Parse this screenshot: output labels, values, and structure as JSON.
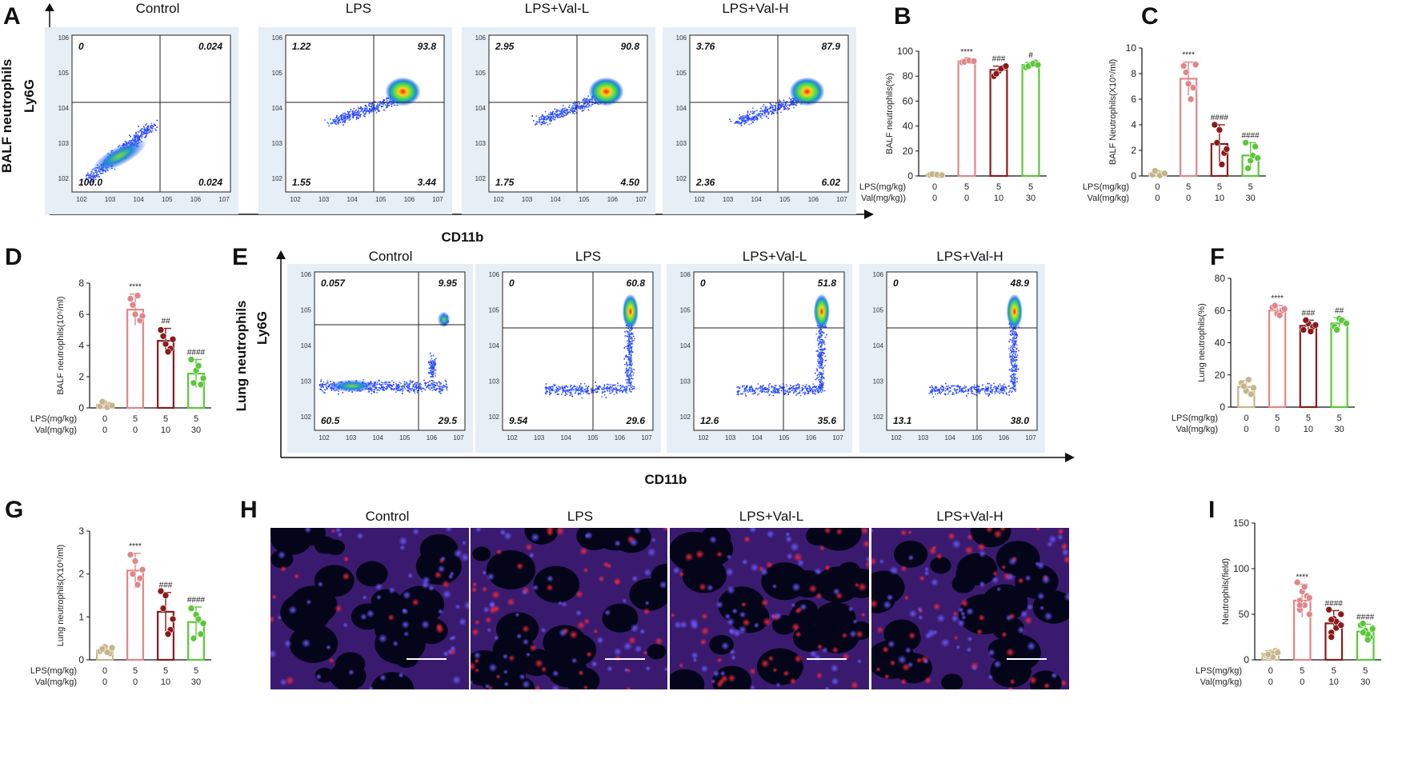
{
  "panel_letters": {
    "A": "A",
    "B": "B",
    "C": "C",
    "D": "D",
    "E": "E",
    "F": "F",
    "G": "G",
    "H": "H",
    "I": "I"
  },
  "groups": [
    "Control",
    "LPS",
    "LPS+Val-L",
    "LPS+Val-H"
  ],
  "bar_colors": {
    "edge": [
      "#c8b48a",
      "#e0868a",
      "#8b1a1a",
      "#5cc73a"
    ],
    "dot": [
      "#c8b48a",
      "#e0868a",
      "#8b1a1a",
      "#5cc73a"
    ]
  },
  "dose_table": {
    "lps_label": "LPS(mg/kg)",
    "val_label": "Val(mg/kg)",
    "val_label_b": "Val(mg/kg))",
    "lps": [
      "0",
      "5",
      "5",
      "5"
    ],
    "val": [
      "0",
      "0",
      "10",
      "30"
    ]
  },
  "flow_A": {
    "title_y_outer": "BALF neutrophils",
    "ylabel": "Ly6G",
    "xlabel": "CD11b",
    "quadrants": [
      {
        "ul": "0",
        "ur": "0.024",
        "ll": "100.0",
        "lr": "0.024"
      },
      {
        "ul": "1.22",
        "ur": "93.8",
        "ll": "1.55",
        "lr": "3.44"
      },
      {
        "ul": "2.95",
        "ur": "90.8",
        "ll": "1.75",
        "lr": "4.50"
      },
      {
        "ul": "3.76",
        "ur": "87.9",
        "ll": "2.36",
        "lr": "6.02"
      }
    ]
  },
  "flow_E": {
    "title_y_outer": "Lung neutrophils",
    "ylabel": "Ly6G",
    "xlabel": "CD11b",
    "quadrants": [
      {
        "ul": "0.057",
        "ur": "9.95",
        "ll": "60.5",
        "lr": "29.5"
      },
      {
        "ul": "0",
        "ur": "60.8",
        "ll": "9.54",
        "lr": "29.6"
      },
      {
        "ul": "0",
        "ur": "51.8",
        "ll": "12.6",
        "lr": "35.6"
      },
      {
        "ul": "0",
        "ur": "48.9",
        "ll": "13.1",
        "lr": "38.0"
      }
    ]
  },
  "chart_data": [
    {
      "id": "B",
      "type": "bar",
      "ylabel": "BALF neutrophils(%)",
      "ylim": [
        0,
        100
      ],
      "yticks": [
        "0",
        "20",
        "40",
        "60",
        "80",
        "100"
      ],
      "values": [
        1,
        92,
        85,
        89
      ],
      "errors": [
        0.5,
        1.5,
        3,
        2
      ],
      "points": [
        [
          0.8,
          1.2,
          0.5,
          1.5,
          1.0,
          0.7
        ],
        [
          91,
          93,
          92,
          91.5,
          92.5,
          92
        ],
        [
          80,
          84,
          87,
          82,
          86,
          88
        ],
        [
          87,
          89,
          91,
          88,
          90,
          89
        ]
      ],
      "sig": [
        "",
        "****",
        "###",
        "#"
      ]
    },
    {
      "id": "C",
      "type": "bar",
      "ylabel": "BALF Neutrophils(X10⁵/ml)",
      "ylim": [
        0,
        10
      ],
      "yticks": [
        "0",
        "2",
        "4",
        "6",
        "8",
        "10"
      ],
      "values": [
        0.2,
        7.6,
        2.5,
        1.6
      ],
      "errors": [
        0.2,
        1.3,
        1.5,
        1.0
      ],
      "points": [
        [
          0.1,
          0.3,
          0.15,
          0.4,
          0.05,
          0.2
        ],
        [
          8.6,
          7.2,
          6.9,
          8.1,
          6.0,
          8.7
        ],
        [
          4.0,
          3.6,
          1.8,
          2.6,
          0.9,
          2.1
        ],
        [
          2.6,
          1.2,
          2.3,
          0.6,
          1.6,
          1.4
        ]
      ],
      "sig": [
        "",
        "****",
        "####",
        "####"
      ]
    },
    {
      "id": "D",
      "type": "bar",
      "ylabel": "BALF neutrophils(10⁵/ml)",
      "ylim": [
        0,
        8
      ],
      "yticks": [
        "0",
        "2",
        "4",
        "6",
        "8"
      ],
      "values": [
        0.2,
        6.3,
        4.3,
        2.2
      ],
      "errors": [
        0.15,
        1.0,
        0.8,
        0.9
      ],
      "points": [
        [
          0.1,
          0.3,
          0.2,
          0.4,
          0.05,
          0.15
        ],
        [
          7.0,
          6.0,
          5.6,
          6.6,
          7.2,
          5.9
        ],
        [
          5.0,
          4.1,
          3.8,
          4.6,
          3.6,
          4.4
        ],
        [
          3.1,
          2.4,
          1.5,
          1.6,
          2.7,
          1.9
        ]
      ],
      "sig": [
        "",
        "****",
        "##",
        "####"
      ]
    },
    {
      "id": "F",
      "type": "bar",
      "ylabel": "Lung neutrophils(%)",
      "ylim": [
        0,
        80
      ],
      "yticks": [
        "0",
        "20",
        "40",
        "60",
        "80"
      ],
      "values": [
        12.5,
        60,
        50.5,
        52
      ],
      "errors": [
        4,
        3,
        3.5,
        3.5
      ],
      "points": [
        [
          15,
          10,
          8,
          13,
          17,
          12
        ],
        [
          62,
          58,
          60,
          63,
          57,
          61
        ],
        [
          48,
          52,
          50,
          54,
          47,
          51
        ],
        [
          50,
          55,
          53,
          48,
          54,
          52
        ]
      ],
      "sig": [
        "",
        "****",
        "###",
        "##"
      ]
    },
    {
      "id": "G",
      "type": "bar",
      "ylabel": "Lung neutrophils(X10⁶/ml)",
      "ylim": [
        0,
        3
      ],
      "yticks": [
        "0",
        "1",
        "2",
        "3"
      ],
      "values": [
        0.22,
        2.08,
        1.12,
        0.88
      ],
      "errors": [
        0.08,
        0.4,
        0.45,
        0.35
      ],
      "points": [
        [
          0.2,
          0.3,
          0.15,
          0.25,
          0.18,
          0.28
        ],
        [
          2.45,
          2.3,
          1.9,
          2.0,
          1.75,
          2.1
        ],
        [
          1.6,
          1.5,
          0.7,
          1.2,
          0.6,
          0.95
        ],
        [
          1.2,
          1.05,
          0.6,
          0.5,
          0.95,
          0.85
        ]
      ],
      "sig": [
        "",
        "****",
        "###",
        "####"
      ]
    },
    {
      "id": "I",
      "type": "bar",
      "ylabel": "Neutrophils(field)",
      "ylim": [
        0,
        150
      ],
      "yticks": [
        "0",
        "50",
        "100",
        "150"
      ],
      "values": [
        7,
        65,
        40,
        31
      ],
      "errors": [
        3,
        18,
        14,
        8
      ],
      "points": [
        [
          5,
          8,
          10,
          4,
          7,
          9,
          6,
          3,
          8,
          6
        ],
        [
          85,
          75,
          70,
          55,
          60,
          50,
          65,
          80,
          68,
          60
        ],
        [
          55,
          45,
          40,
          30,
          35,
          50,
          25,
          42,
          38,
          44
        ],
        [
          38,
          32,
          25,
          30,
          28,
          35,
          40,
          22,
          34,
          30
        ]
      ],
      "sig": [
        "",
        "****",
        "####",
        "####"
      ]
    }
  ]
}
